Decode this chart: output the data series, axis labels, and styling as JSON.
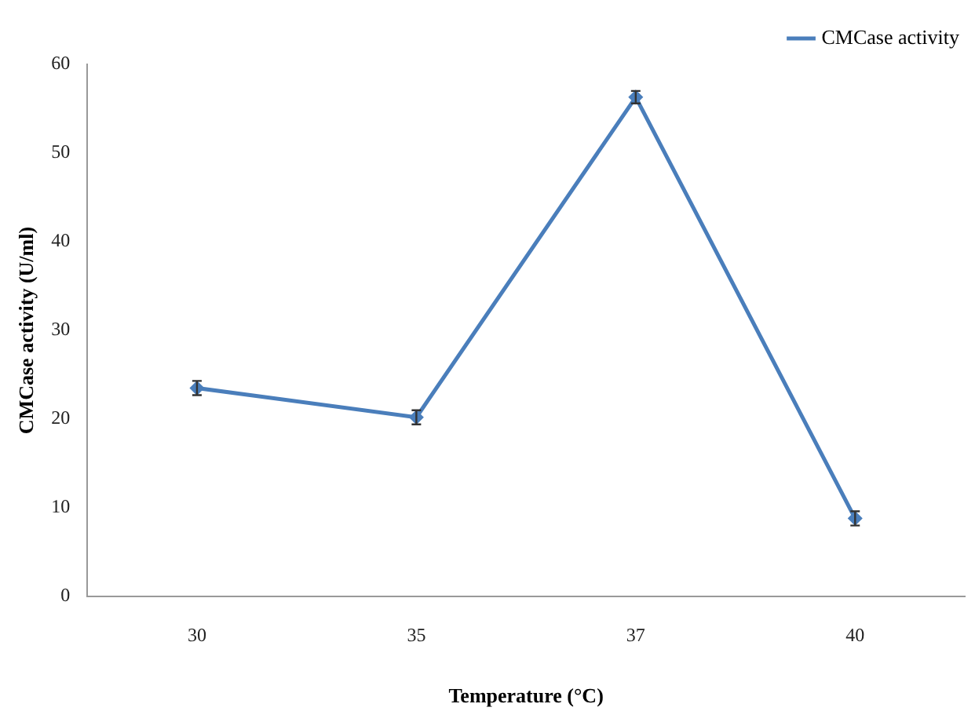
{
  "chart_data": {
    "type": "line",
    "xlabel": "Temperature (°C)",
    "ylabel": "CMCase activity (U/ml)",
    "categories": [
      "30",
      "35",
      "37",
      "40"
    ],
    "series": [
      {
        "name": "CMCase activity",
        "color": "#4a7ebb",
        "values": [
          23.5,
          20.2,
          56.3,
          8.8
        ],
        "errors": [
          0.8,
          0.8,
          0.7,
          0.8
        ]
      }
    ],
    "ylim": [
      0,
      60
    ],
    "yticks": [
      0,
      10,
      20,
      30,
      40,
      50,
      60
    ],
    "grid": false,
    "legend": "top right",
    "marker": "diamond",
    "line_style": "solid"
  }
}
